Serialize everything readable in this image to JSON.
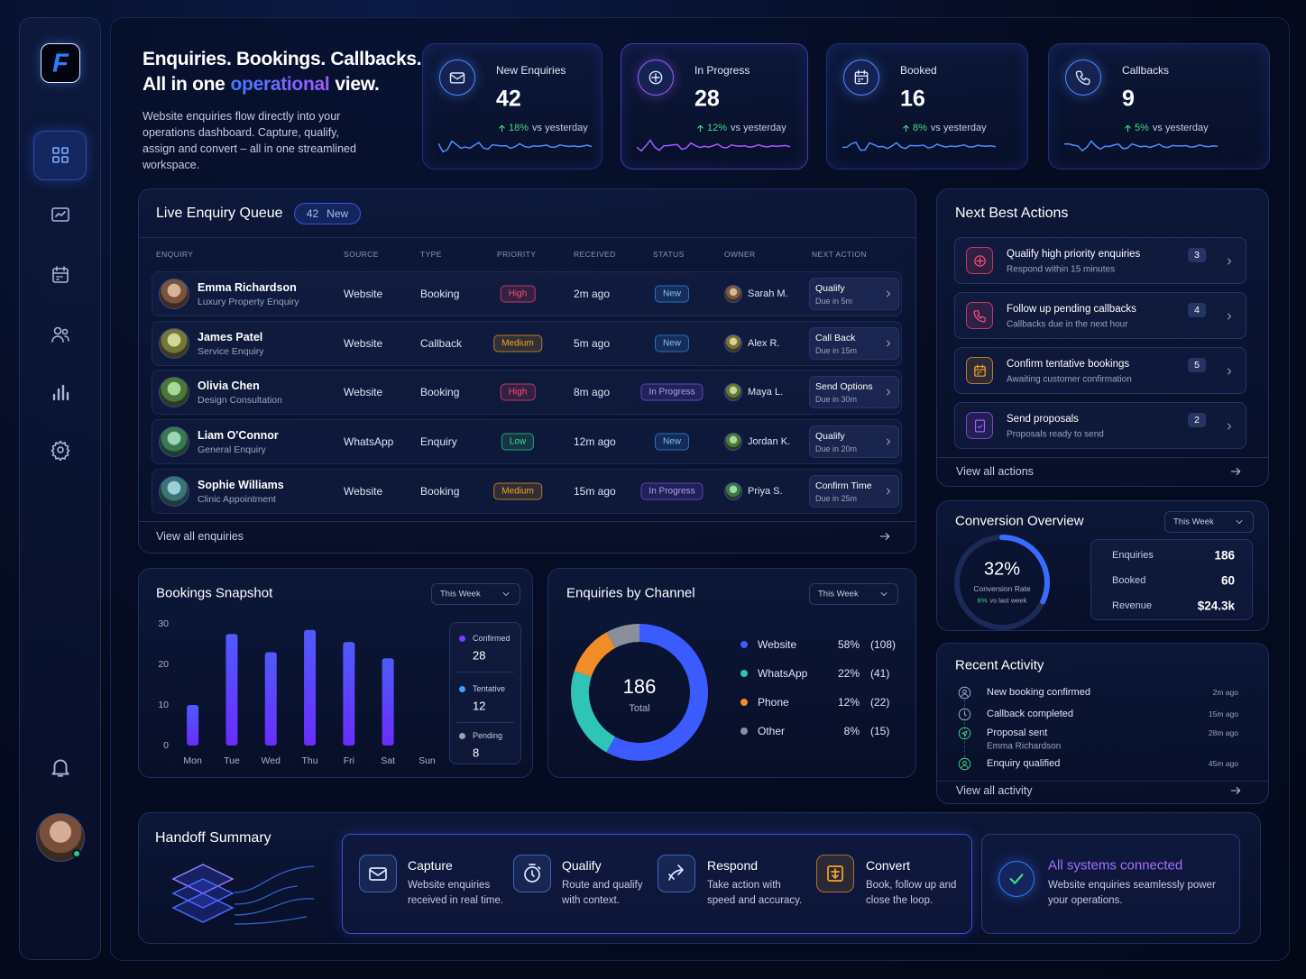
{
  "sidebar": {
    "logo": "F"
  },
  "header": {
    "title_line1": "Enquiries. Bookings. Callbacks.",
    "title_line2": [
      "All in one",
      "operational",
      "view."
    ],
    "description": "Website enquiries flow directly into your operations dashboard. Capture, qualify, assign and convert – all in one streamlined workspace."
  },
  "kpis": [
    {
      "label": "New Enquiries",
      "value": 42,
      "change": "18%",
      "change_text": "vs yesterday",
      "color": "#4d8dff"
    },
    {
      "label": "In Progress",
      "value": 28,
      "change": "12%",
      "change_text": "vs yesterday",
      "color": "#a35bff"
    },
    {
      "label": "Booked",
      "value": 16,
      "change": "8%",
      "change_text": "vs yesterday",
      "color": "#4d8dff"
    },
    {
      "label": "Callbacks",
      "value": 9,
      "change": "5%",
      "change_text": "vs yesterday",
      "color": "#4d8dff"
    }
  ],
  "queue": {
    "title": "Live Enquiry Queue",
    "badge_count": 42,
    "badge_label": "New",
    "columns": [
      "ENQUIRY",
      "SOURCE",
      "TYPE",
      "PRIORITY",
      "RECEIVED",
      "STATUS",
      "OWNER",
      "NEXT ACTION"
    ],
    "rows": [
      {
        "name": "Emma Richardson",
        "subtitle": "Luxury Property Enquiry",
        "source": "Website",
        "type": "Booking",
        "priority": {
          "label": "High",
          "color": "#ff4d6d"
        },
        "received": "2m ago",
        "status": {
          "label": "New",
          "color": "#3d9bff"
        },
        "owner": "Sarah M.",
        "next_action": "Qualify",
        "due": "Due in 5m"
      },
      {
        "name": "James Patel",
        "subtitle": "Service Enquiry",
        "source": "Website",
        "type": "Callback",
        "priority": {
          "label": "Medium",
          "color": "#f5a623"
        },
        "received": "5m ago",
        "status": {
          "label": "New",
          "color": "#3d9bff"
        },
        "owner": "Alex R.",
        "next_action": "Call Back",
        "due": "Due in 15m"
      },
      {
        "name": "Olivia Chen",
        "subtitle": "Design Consultation",
        "source": "Website",
        "type": "Booking",
        "priority": {
          "label": "High",
          "color": "#ff4d6d"
        },
        "received": "8m ago",
        "status": {
          "label": "In Progress",
          "color": "#8b5cff"
        },
        "owner": "Maya L.",
        "next_action": "Send Options",
        "due": "Due in 30m"
      },
      {
        "name": "Liam O'Connor",
        "subtitle": "General Enquiry",
        "source": "WhatsApp",
        "type": "Enquiry",
        "priority": {
          "label": "Low",
          "color": "#3ddc84"
        },
        "received": "12m ago",
        "status": {
          "label": "New",
          "color": "#3d9bff"
        },
        "owner": "Jordan K.",
        "next_action": "Qualify",
        "due": "Due in 20m"
      },
      {
        "name": "Sophie Williams",
        "subtitle": "Clinic Appointment",
        "source": "Website",
        "type": "Booking",
        "priority": {
          "label": "Medium",
          "color": "#f5a623"
        },
        "received": "15m ago",
        "status": {
          "label": "In Progress",
          "color": "#8b5cff"
        },
        "owner": "Priya S.",
        "next_action": "Confirm Time",
        "due": "Due in 25m"
      }
    ],
    "footer": "View all enquiries"
  },
  "next_actions": {
    "title": "Next Best Actions",
    "items": [
      {
        "title": "Qualify high priority enquiries",
        "subtitle": "Respond within 15 minutes",
        "count": 3,
        "color": "#ff4d6d"
      },
      {
        "title": "Follow up pending callbacks",
        "subtitle": "Callbacks due in the next hour",
        "count": 4,
        "color": "#ff4d8a"
      },
      {
        "title": "Confirm tentative bookings",
        "subtitle": "Awaiting customer confirmation",
        "count": 5,
        "color": "#f5a623"
      },
      {
        "title": "Send proposals",
        "subtitle": "Proposals ready to send",
        "count": 2,
        "color": "#a35bff"
      }
    ],
    "footer": "View all actions"
  },
  "conversion": {
    "title": "Conversion Overview",
    "period": "This Week",
    "rate": {
      "value": 32,
      "label": "32%"
    },
    "rate_label": "Conversion Rate",
    "change": "6%",
    "change_text": "vs last week",
    "stats": [
      {
        "label": "Enquiries",
        "value": "186"
      },
      {
        "label": "Booked",
        "value": "60"
      },
      {
        "label": "Revenue",
        "value": "$24.3k"
      }
    ]
  },
  "recent_activity": {
    "title": "Recent Activity",
    "items": [
      {
        "text": "New booking confirmed",
        "time": "2m ago"
      },
      {
        "text": "Callback completed",
        "time": "15m ago"
      },
      {
        "text": "Proposal sent",
        "sub": "Emma Richardson",
        "time": "28m ago"
      },
      {
        "text": "Enquiry qualified",
        "time": "45m ago"
      }
    ],
    "footer": "View all activity"
  },
  "chart_data": [
    {
      "type": "bar",
      "title": "Bookings Snapshot",
      "period": "This Week",
      "categories": [
        "Mon",
        "Tue",
        "Wed",
        "Thu",
        "Fri",
        "Sat",
        "Sun"
      ],
      "values": [
        10,
        27.5,
        23,
        28.5,
        25.5,
        21.5,
        0
      ],
      "color": "#4f5bff",
      "ylim": [
        0,
        30
      ],
      "yticks": [
        0,
        10,
        20,
        30
      ],
      "grid": false,
      "summary": [
        {
          "name": "Confirmed",
          "value": 28,
          "color": "#7b3cff"
        },
        {
          "name": "Tentative",
          "value": 12,
          "color": "#3ba0ff"
        },
        {
          "name": "Pending",
          "value": 8,
          "color": "#9aa0b0"
        }
      ]
    },
    {
      "type": "donut",
      "title": "Enquiries by Channel",
      "period": "This Week",
      "total": 186,
      "total_label": "Total",
      "categories": [
        "Website",
        "WhatsApp",
        "Phone",
        "Other"
      ],
      "values": [
        58,
        22,
        12,
        8
      ],
      "value_labels": [
        "58%",
        "22%",
        "12%",
        "8%"
      ],
      "counts": [
        108,
        41,
        22,
        15
      ],
      "count_labels": [
        "(108)",
        "(41)",
        "(22)",
        "(15)"
      ],
      "colors": [
        "#3a5bff",
        "#2ec4b6",
        "#f28c28",
        "#8a8f9c"
      ]
    }
  ],
  "handoff": {
    "title": "Handoff Summary",
    "steps": [
      {
        "title": "Capture",
        "text": "Website enquiries received in real time."
      },
      {
        "title": "Qualify",
        "text": "Route and qualify with context."
      },
      {
        "title": "Respond",
        "text": "Take action with speed and accuracy."
      },
      {
        "title": "Convert",
        "text": "Book, follow up and close the loop."
      }
    ],
    "status": {
      "title": "All systems connected",
      "text": "Website enquiries seamlessly power your operations."
    }
  }
}
